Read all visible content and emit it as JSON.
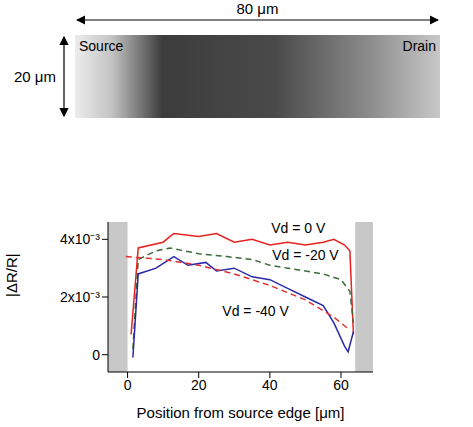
{
  "image_panel": {
    "width_label": "80 μm",
    "height_label": "20 μm",
    "left_label": "Source",
    "right_label": "Drain"
  },
  "chart_data": {
    "type": "line",
    "x_label": "Position from source edge [μm]",
    "y_label": "|ΔR/R|",
    "xlim": [
      -5.5,
      69
    ],
    "xticks": [
      0,
      20,
      40,
      60
    ],
    "ylim": [
      -0.0006,
      0.0046
    ],
    "yticks": [
      0,
      {
        "value": 0.002,
        "label": "2x10⁻³"
      },
      {
        "value": 0.004,
        "label": "4x10⁻³"
      }
    ],
    "grid": false,
    "shaded_regions": [
      [
        -5.5,
        0
      ],
      [
        64,
        69
      ]
    ],
    "series": [
      {
        "color": "#e8231f",
        "line_style": "solid",
        "x": [
          1,
          3,
          10,
          13,
          20,
          25,
          30,
          35,
          40,
          45,
          50,
          55,
          58,
          61,
          62.5,
          63.5
        ],
        "values": [
          0.0007,
          0.0037,
          0.0039,
          0.0042,
          0.0041,
          0.0042,
          0.0039,
          0.004,
          0.0038,
          0.0039,
          0.0038,
          0.0039,
          0.004,
          0.0038,
          0.0036,
          0.0007
        ]
      },
      {
        "color": "#3a6b3a",
        "line_style": "dashed",
        "x": [
          1.5,
          3,
          8,
          12,
          20,
          28,
          35,
          40,
          45,
          50,
          55,
          60,
          62.5,
          63.5
        ],
        "values": [
          0.0002,
          0.0033,
          0.0036,
          0.0037,
          0.0035,
          0.0034,
          0.0033,
          0.0031,
          0.003,
          0.0029,
          0.0028,
          0.0026,
          0.0022,
          0.0011
        ]
      },
      {
        "color": "#2a2aa8",
        "line_style": "solid",
        "x": [
          1.5,
          3,
          8,
          13,
          17,
          22,
          25,
          30,
          35,
          40,
          45,
          50,
          55,
          58,
          61,
          62,
          63.5
        ],
        "values": [
          -0.0001,
          0.0028,
          0.003,
          0.0034,
          0.0031,
          0.0032,
          0.0029,
          0.003,
          0.0027,
          0.0026,
          0.0023,
          0.002,
          0.0017,
          0.0011,
          0.0003,
          0.0001,
          0.0008
        ]
      },
      {
        "color": "#e03030",
        "line_style": "dashed",
        "x": [
          -0.5,
          10,
          20,
          30,
          40,
          50,
          58,
          62
        ],
        "values": [
          0.0034,
          0.0033,
          0.0031,
          0.0028,
          0.0024,
          0.0019,
          0.0013,
          0.0009
        ]
      }
    ],
    "annotations": [
      {
        "text": "Vd = 0 V",
        "x": 48,
        "y": 0.0044
      },
      {
        "text": "Vd = -20 V",
        "x": 50,
        "y": 0.00345
      },
      {
        "text": "Vd = -40 V",
        "x": 36,
        "y": 0.0015
      }
    ]
  }
}
